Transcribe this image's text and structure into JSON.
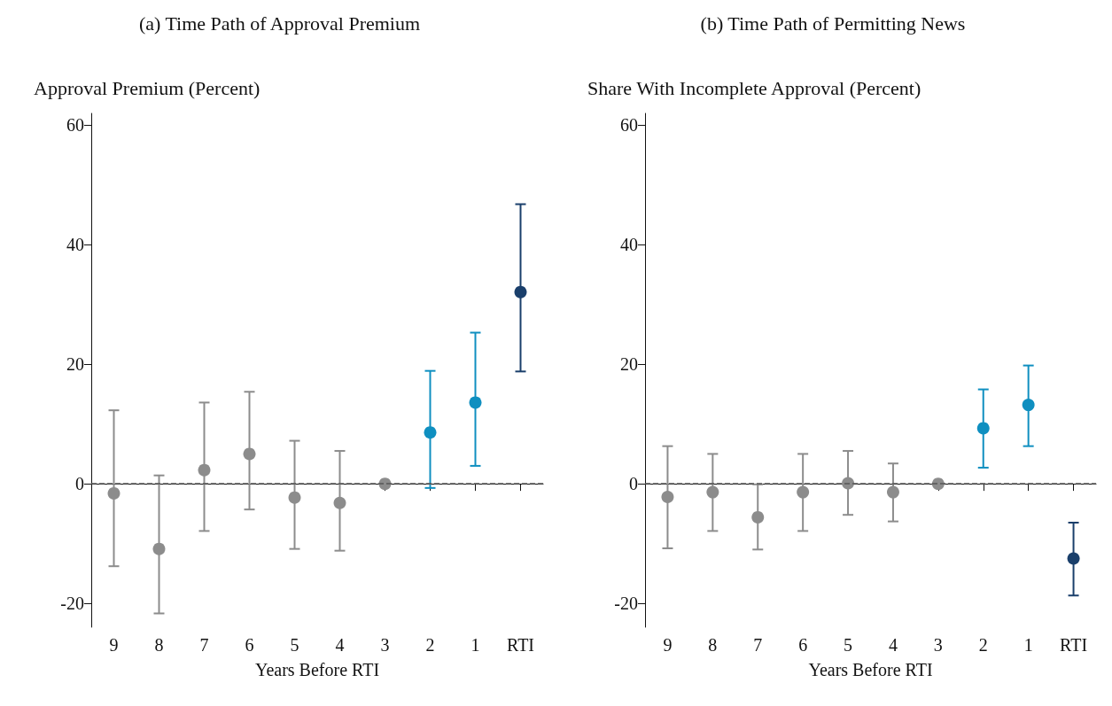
{
  "chart_data": [
    {
      "type": "scatter",
      "title": "(a) Time Path of Approval Premium",
      "ylabel": "Approval Premium (Percent)",
      "xlabel": "Years Before RTI",
      "categories": [
        "9",
        "8",
        "7",
        "6",
        "5",
        "4",
        "3",
        "2",
        "1",
        "RTI"
      ],
      "values": [
        -1.6,
        -10.9,
        2.3,
        5.0,
        -2.3,
        -3.2,
        0,
        8.6,
        13.6,
        32.1
      ],
      "errors": [
        [
          -13.8,
          12.3
        ],
        [
          -21.7,
          1.4
        ],
        [
          -7.9,
          13.6
        ],
        [
          -4.3,
          15.4
        ],
        [
          -10.9,
          7.2
        ],
        [
          -11.2,
          5.5
        ],
        null,
        [
          -0.7,
          18.9
        ],
        [
          3.0,
          25.3
        ],
        [
          18.8,
          46.8
        ]
      ],
      "colors": [
        "#8c8c8c",
        "#8c8c8c",
        "#8c8c8c",
        "#8c8c8c",
        "#8c8c8c",
        "#8c8c8c",
        "#8c8c8c",
        "#0f8fc0",
        "#0f8fc0",
        "#1a3f6b"
      ],
      "ylim": [
        -24,
        62
      ],
      "yticks": [
        -20,
        0,
        20,
        40,
        60
      ],
      "grid": false,
      "marker": "circle",
      "ref_lines": [
        {
          "axis": "y",
          "value": 0,
          "color": "#555555",
          "line_style": "dashed"
        }
      ]
    },
    {
      "type": "scatter",
      "title": "(b) Time Path of Permitting News",
      "ylabel": "Share With Incomplete Approval (Percent)",
      "xlabel": "Years Before RTI",
      "categories": [
        "9",
        "8",
        "7",
        "6",
        "5",
        "4",
        "3",
        "2",
        "1",
        "RTI"
      ],
      "values": [
        -2.2,
        -1.4,
        -5.6,
        -1.4,
        0.1,
        -1.4,
        0,
        9.3,
        13.2,
        -12.5
      ],
      "errors": [
        [
          -10.8,
          6.3
        ],
        [
          -7.9,
          5.0
        ],
        [
          -11.0,
          -0.1
        ],
        [
          -7.9,
          5.0
        ],
        [
          -5.2,
          5.5
        ],
        [
          -6.3,
          3.4
        ],
        null,
        [
          2.7,
          15.8
        ],
        [
          6.3,
          19.8
        ],
        [
          -18.7,
          -6.5
        ]
      ],
      "colors": [
        "#8c8c8c",
        "#8c8c8c",
        "#8c8c8c",
        "#8c8c8c",
        "#8c8c8c",
        "#8c8c8c",
        "#8c8c8c",
        "#0f8fc0",
        "#0f8fc0",
        "#1a3f6b"
      ],
      "ylim": [
        -24,
        62
      ],
      "yticks": [
        -20,
        0,
        20,
        40,
        60
      ],
      "grid": false,
      "marker": "circle",
      "ref_lines": [
        {
          "axis": "y",
          "value": 0,
          "color": "#555555",
          "line_style": "dashed"
        }
      ]
    }
  ]
}
